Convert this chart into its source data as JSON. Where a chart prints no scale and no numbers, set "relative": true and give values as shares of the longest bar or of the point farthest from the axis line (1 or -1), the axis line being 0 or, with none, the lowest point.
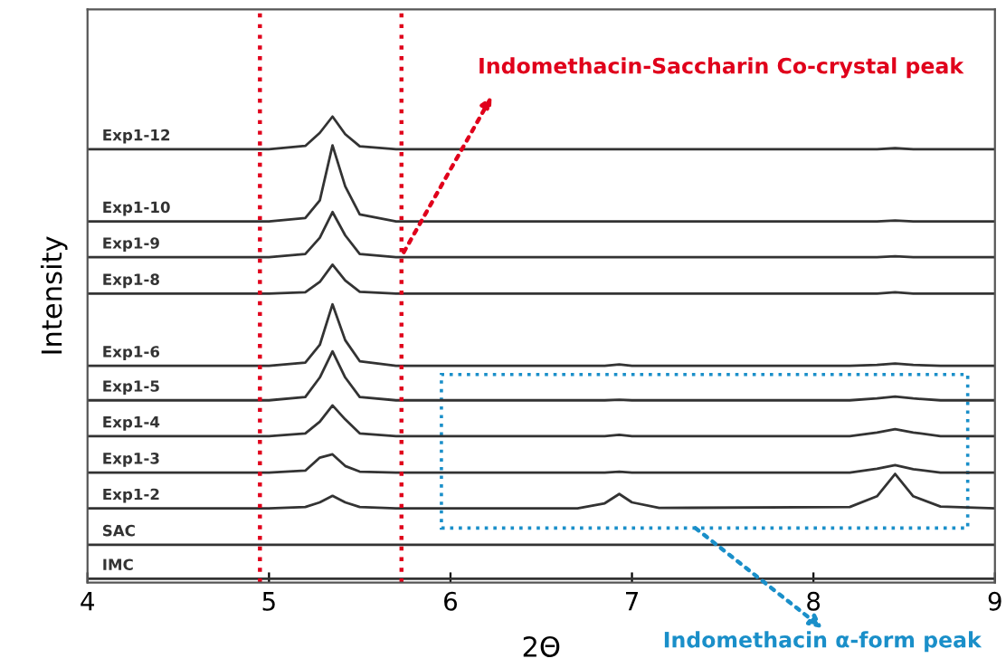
{
  "chart_data": {
    "type": "line",
    "relative": true,
    "xlabel": "2Θ",
    "ylabel": "Intensity",
    "xlim": [
      4,
      9
    ],
    "xticks": [
      4,
      5,
      6,
      7,
      8,
      9
    ],
    "grid": false,
    "marker": "none",
    "line_style": "solid",
    "x": [
      4,
      5,
      5.2,
      5.28,
      5.35,
      5.42,
      5.5,
      5.7,
      6.7,
      6.85,
      6.93,
      7.0,
      7.15,
      8.2,
      8.35,
      8.45,
      8.55,
      8.7,
      9
    ],
    "series": [
      {
        "name": "Exp1-12",
        "color": "#333333",
        "values": [
          0.93,
          0.93,
          0.937,
          0.965,
          1.0,
          0.962,
          0.936,
          0.93,
          0.93,
          0.93,
          0.93,
          0.93,
          0.93,
          0.93,
          0.93,
          0.932,
          0.93,
          0.93,
          0.93
        ]
      },
      {
        "name": "Exp1-10",
        "color": "#333333",
        "values": [
          0.775,
          0.775,
          0.782,
          0.82,
          0.938,
          0.85,
          0.79,
          0.775,
          0.775,
          0.775,
          0.775,
          0.775,
          0.775,
          0.775,
          0.775,
          0.777,
          0.775,
          0.775,
          0.775
        ]
      },
      {
        "name": "Exp1-9",
        "color": "#333333",
        "values": [
          0.698,
          0.698,
          0.705,
          0.74,
          0.795,
          0.745,
          0.705,
          0.698,
          0.698,
          0.698,
          0.698,
          0.698,
          0.698,
          0.698,
          0.698,
          0.7,
          0.698,
          0.698,
          0.698
        ]
      },
      {
        "name": "Exp1-8",
        "color": "#333333",
        "values": [
          0.62,
          0.62,
          0.623,
          0.645,
          0.682,
          0.648,
          0.624,
          0.62,
          0.62,
          0.62,
          0.62,
          0.62,
          0.62,
          0.62,
          0.62,
          0.623,
          0.62,
          0.62,
          0.62
        ]
      },
      {
        "name": "Exp1-6",
        "color": "#333333",
        "values": [
          0.465,
          0.465,
          0.472,
          0.51,
          0.597,
          0.52,
          0.475,
          0.465,
          0.465,
          0.465,
          0.468,
          0.465,
          0.465,
          0.465,
          0.467,
          0.47,
          0.467,
          0.465,
          0.465
        ]
      },
      {
        "name": "Exp1-5",
        "color": "#333333",
        "values": [
          0.391,
          0.391,
          0.398,
          0.44,
          0.496,
          0.44,
          0.398,
          0.391,
          0.391,
          0.391,
          0.392,
          0.391,
          0.391,
          0.391,
          0.395,
          0.399,
          0.395,
          0.391,
          0.391
        ]
      },
      {
        "name": "Exp1-4",
        "color": "#333333",
        "values": [
          0.314,
          0.314,
          0.32,
          0.345,
          0.38,
          0.35,
          0.32,
          0.314,
          0.314,
          0.314,
          0.317,
          0.314,
          0.314,
          0.314,
          0.322,
          0.329,
          0.322,
          0.314,
          0.314
        ]
      },
      {
        "name": "Exp1-3",
        "color": "#333333",
        "values": [
          0.236,
          0.236,
          0.24,
          0.268,
          0.275,
          0.25,
          0.238,
          0.236,
          0.236,
          0.236,
          0.238,
          0.236,
          0.236,
          0.236,
          0.244,
          0.252,
          0.243,
          0.236,
          0.236
        ]
      },
      {
        "name": "Exp1-2",
        "color": "#333333",
        "values": [
          0.159,
          0.159,
          0.162,
          0.172,
          0.186,
          0.172,
          0.162,
          0.159,
          0.159,
          0.17,
          0.19,
          0.172,
          0.16,
          0.162,
          0.185,
          0.233,
          0.185,
          0.163,
          0.159
        ]
      },
      {
        "name": "SAC",
        "color": "#333333",
        "values": [
          0.081,
          0.081,
          0.081,
          0.081,
          0.081,
          0.081,
          0.081,
          0.081,
          0.081,
          0.081,
          0.081,
          0.081,
          0.081,
          0.081,
          0.081,
          0.081,
          0.081,
          0.081,
          0.081
        ]
      },
      {
        "name": "IMC",
        "color": "#333333",
        "values": [
          0.008,
          0.008,
          0.008,
          0.008,
          0.008,
          0.008,
          0.008,
          0.008,
          0.008,
          0.008,
          0.008,
          0.008,
          0.008,
          0.008,
          0.008,
          0.008,
          0.008,
          0.008,
          0.008
        ]
      }
    ],
    "ref_lines": [
      {
        "axis": "x",
        "value": 4.95,
        "color": "#e0001b",
        "line_style": "dotted"
      },
      {
        "axis": "x",
        "value": 5.73,
        "color": "#e0001b",
        "line_style": "dotted"
      }
    ],
    "annotations": [
      {
        "text": "Indomethacin-Saccharin Co-crystal peak",
        "x": 5.73,
        "y": 0.7
      },
      "Indomethacin α-form peak"
    ]
  }
}
